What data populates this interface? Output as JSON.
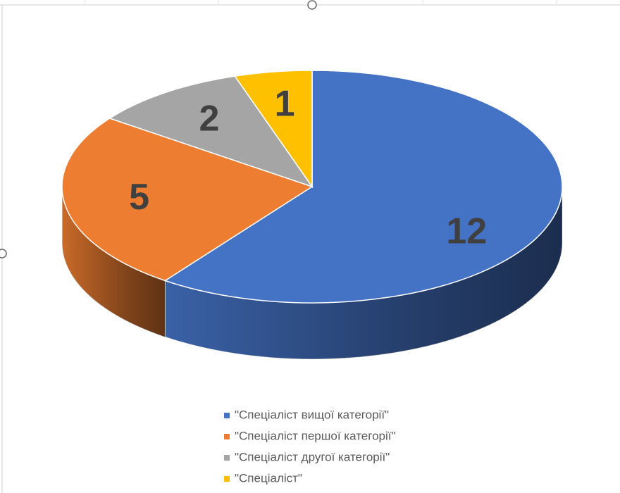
{
  "chart_data": {
    "type": "pie",
    "categories": [
      "\"Спеціаліст вищої категорії\"",
      "\"Спеціаліст першої категорії\"",
      "\"Спеціаліст другої категорії\"",
      "\"Спеціаліст\""
    ],
    "values": [
      12,
      5,
      2,
      1
    ],
    "colors": [
      "#4472c4",
      "#ed7d31",
      "#a5a5a5",
      "#ffc000"
    ],
    "legend": "bottom"
  }
}
